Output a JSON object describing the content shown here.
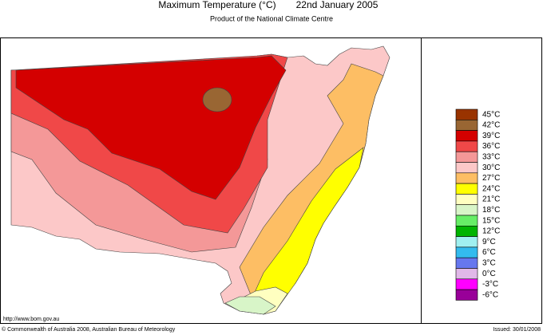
{
  "header": {
    "title": "Maximum Temperature (°C)",
    "date": "22nd January 2005",
    "subtitle": "Product of the National Climate Centre"
  },
  "legend": [
    {
      "label": "45°C",
      "color": "#993300"
    },
    {
      "label": "42°C",
      "color": "#996633"
    },
    {
      "label": "39°C",
      "color": "#d40000"
    },
    {
      "label": "36°C",
      "color": "#f04848"
    },
    {
      "label": "33°C",
      "color": "#f49898"
    },
    {
      "label": "30°C",
      "color": "#fcc8c8"
    },
    {
      "label": "27°C",
      "color": "#fdbe64"
    },
    {
      "label": "24°C",
      "color": "#ffff00"
    },
    {
      "label": "21°C",
      "color": "#ffffc0"
    },
    {
      "label": "18°C",
      "color": "#d8f5c8"
    },
    {
      "label": "15°C",
      "color": "#66ee66"
    },
    {
      "label": "12°C",
      "color": "#00b400"
    },
    {
      "label": "9°C",
      "color": "#a0f0f0"
    },
    {
      "label": "6°C",
      "color": "#33bbee"
    },
    {
      "label": "3°C",
      "color": "#6677ee"
    },
    {
      "label": "0°C",
      "color": "#e0b8e8"
    },
    {
      "label": "-3°C",
      "color": "#ff00ff"
    },
    {
      "label": "-6°C",
      "color": "#990099"
    }
  ],
  "footer": {
    "url": "http://www.bom.gov.au",
    "copyright": "© Commonwealth of Australia 2008, Australian Bureau of Meteorology",
    "issued": "Issued: 30/01/2008"
  }
}
